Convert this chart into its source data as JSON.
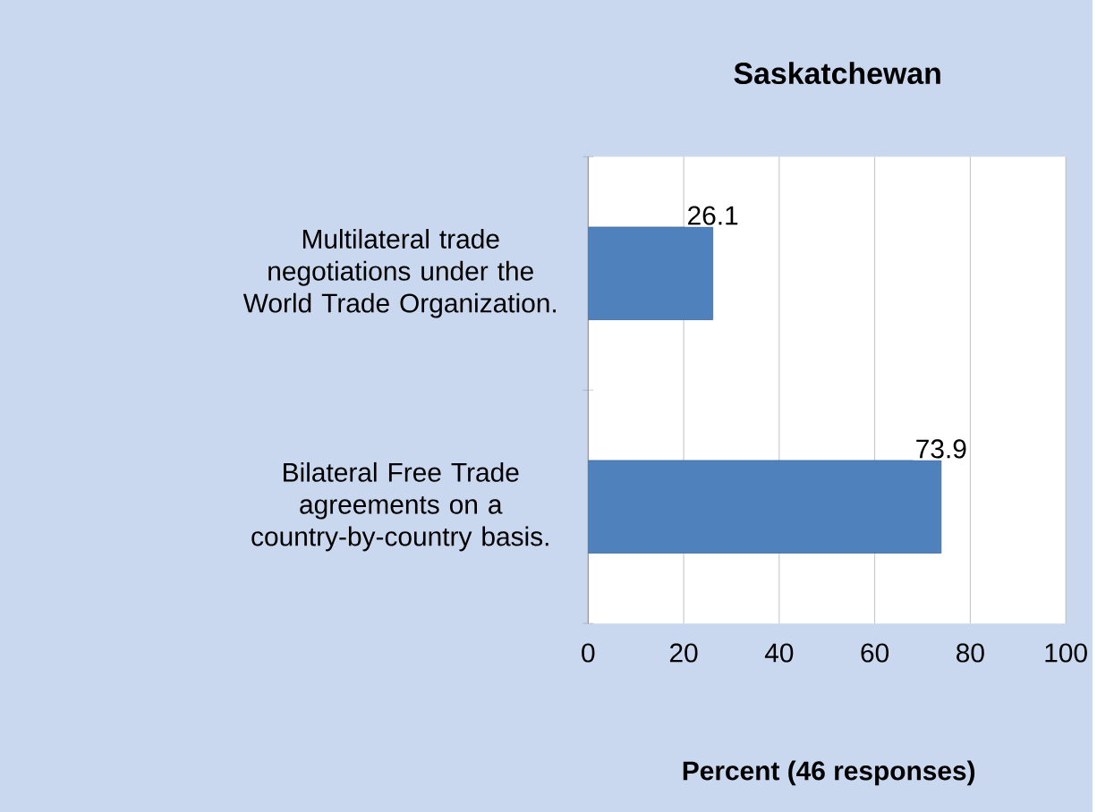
{
  "chart_data": {
    "type": "bar",
    "orientation": "horizontal",
    "title": "Saskatchewan",
    "xlabel": "Percent (46 responses)",
    "categories": [
      "Multilateral trade negotiations under the World Trade Organization.",
      "Bilateral Free Trade agreements on a country-by-country basis."
    ],
    "values": [
      26.1,
      73.9
    ],
    "color": "#4f81bd",
    "data_labels": true,
    "xlim": [
      0,
      100
    ],
    "xticks": [
      0,
      20,
      40,
      60,
      80,
      100
    ],
    "grid": "x"
  }
}
